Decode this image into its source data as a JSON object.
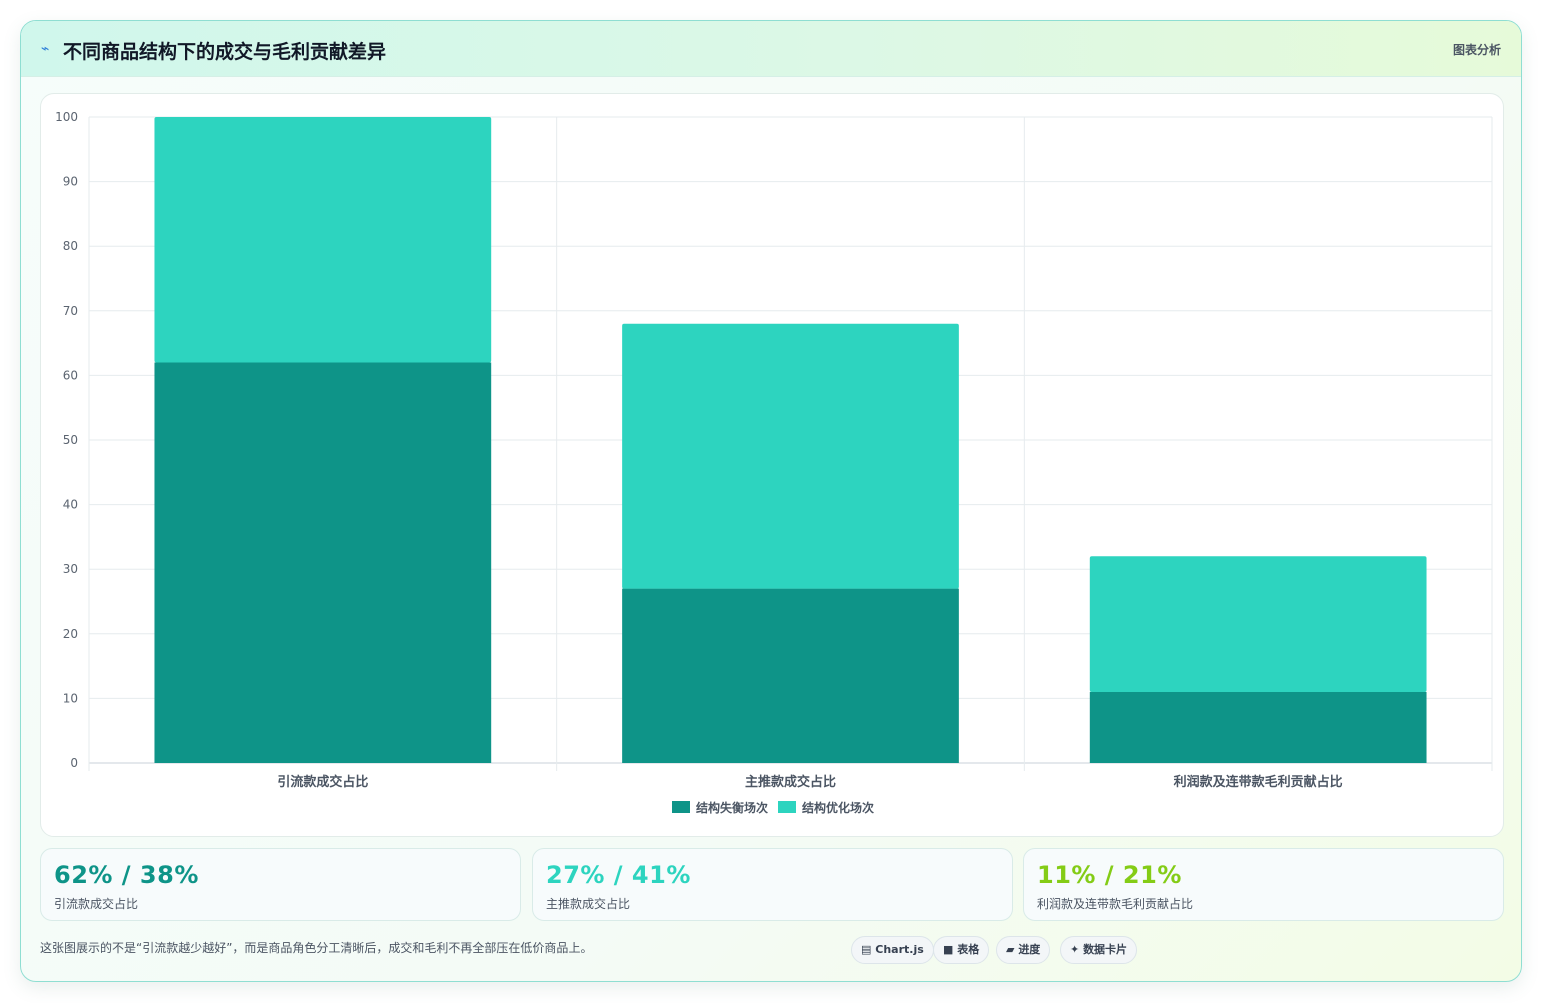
{
  "header": {
    "icon": "chart-line-icon",
    "title": "不同商品结构下的成交与毛利贡献差异",
    "tag": "图表分析"
  },
  "chart_data": {
    "type": "bar",
    "stacked": true,
    "categories": [
      "引流款成交占比",
      "主推款成交占比",
      "利润款及连带款毛利贡献占比"
    ],
    "series": [
      {
        "name": "结构失衡场次",
        "values": [
          62,
          27,
          11
        ],
        "color": "#0e9488"
      },
      {
        "name": "结构优化场次",
        "values": [
          38,
          41,
          21
        ],
        "color": "#2dd4bf"
      }
    ],
    "ylim": [
      0,
      100
    ],
    "yticks": [
      0,
      10,
      20,
      30,
      40,
      50,
      60,
      70,
      80,
      90,
      100
    ],
    "grid": true,
    "legend": "bottom"
  },
  "stats": [
    {
      "value": "62% / 38%",
      "label": "引流款成交占比",
      "color": "#0e9488"
    },
    {
      "value": "27% / 41%",
      "label": "主推款成交占比",
      "color": "#2dd4bf"
    },
    {
      "value": "11% / 21%",
      "label": "利润款及连带款毛利贡献占比",
      "color": "#84cc16"
    }
  ],
  "footnote": "这张图展示的不是“引流款越少越好”，而是商品角色分工清晰后，成交和毛利不再全部压在低价商品上。",
  "chips": [
    {
      "icon": "chart-icon",
      "label": "Chart.js"
    },
    {
      "icon": "table-icon",
      "label": "表格"
    },
    {
      "icon": "progress-icon",
      "label": "进度"
    },
    {
      "icon": "sparkle-icon",
      "label": "数据卡片"
    }
  ]
}
